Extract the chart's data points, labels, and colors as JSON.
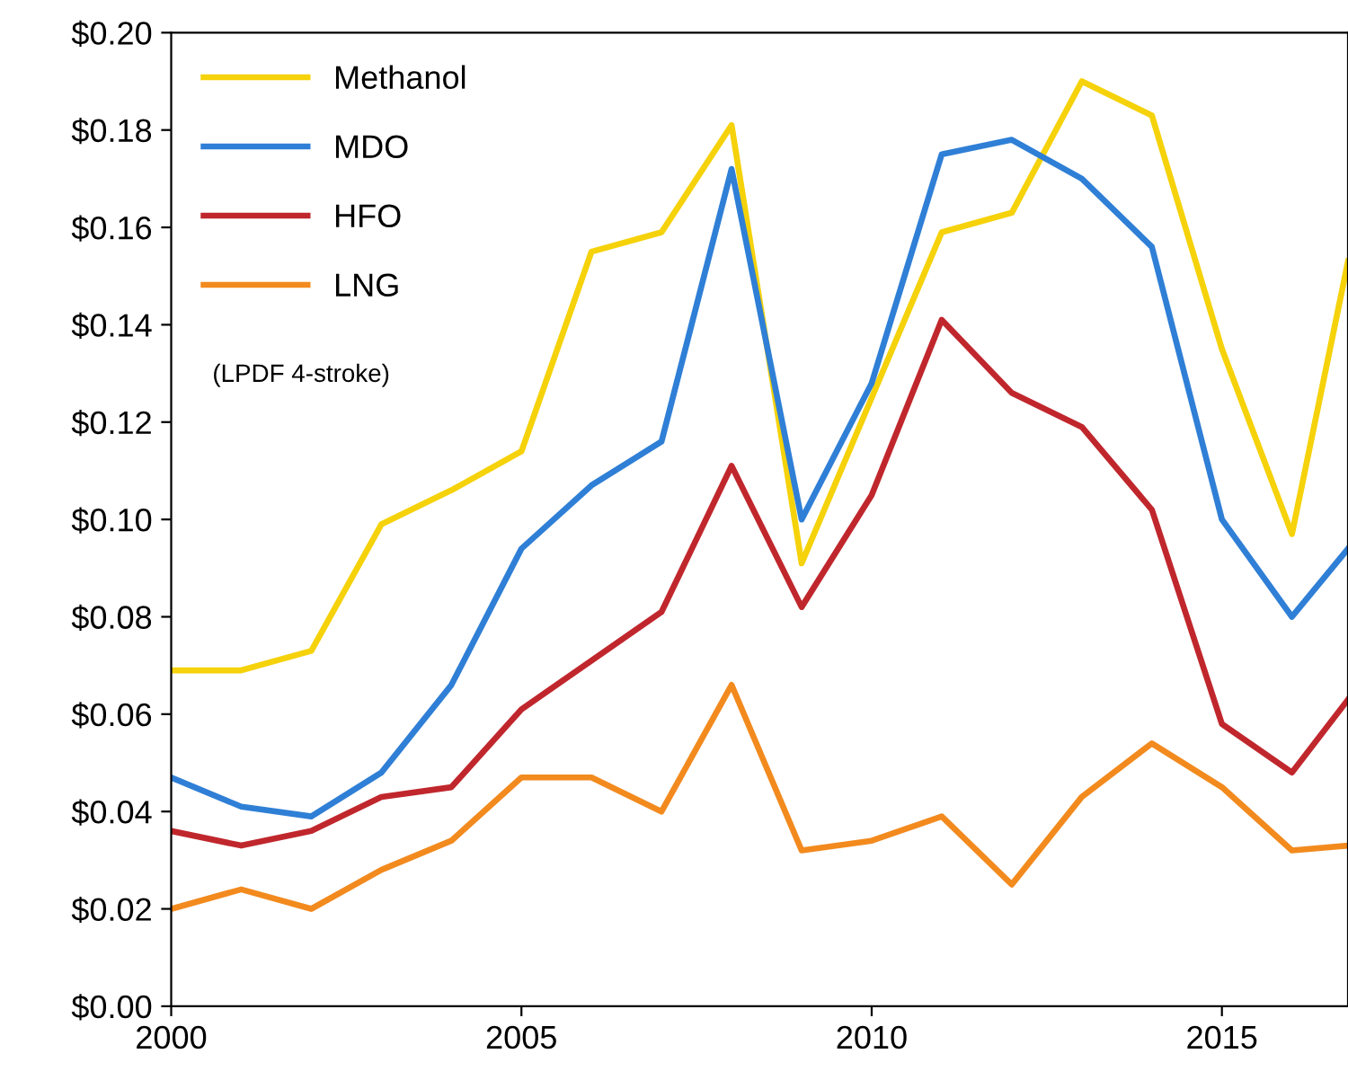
{
  "chart_data": {
    "type": "line",
    "xlim": [
      2000,
      2016.8
    ],
    "xticks": [
      2000,
      2005,
      2010,
      2015
    ],
    "ylim": [
      0,
      0.2
    ],
    "yticks": [
      {
        "value": 0,
        "label": "$0.00"
      },
      {
        "value": 0.02,
        "label": "$0.02"
      },
      {
        "value": 0.04,
        "label": "$0.04"
      },
      {
        "value": 0.06,
        "label": "$0.06"
      },
      {
        "value": 0.08,
        "label": "$0.08"
      },
      {
        "value": 0.1,
        "label": "$0.10"
      },
      {
        "value": 0.12,
        "label": "$0.12"
      },
      {
        "value": 0.14,
        "label": "$0.14"
      },
      {
        "value": 0.16,
        "label": "$0.16"
      },
      {
        "value": 0.18,
        "label": "$0.18"
      },
      {
        "value": 0.2,
        "label": "$0.20"
      }
    ],
    "x": [
      2000,
      2001,
      2002,
      2003,
      2004,
      2005,
      2006,
      2007,
      2008,
      2009,
      2010,
      2011,
      2012,
      2013,
      2014,
      2015,
      2016,
      2016.8
    ],
    "series": [
      {
        "name": "Methanol",
        "color": "#f5d20a",
        "values": [
          0.069,
          0.069,
          0.073,
          0.099,
          0.106,
          0.114,
          0.155,
          0.159,
          0.181,
          0.091,
          0.125,
          0.159,
          0.163,
          0.19,
          0.183,
          0.135,
          0.097,
          0.153
        ]
      },
      {
        "name": "MDO",
        "color": "#2f7fd6",
        "values": [
          0.047,
          0.041,
          0.039,
          0.048,
          0.066,
          0.094,
          0.107,
          0.116,
          0.172,
          0.1,
          0.128,
          0.175,
          0.178,
          0.17,
          0.156,
          0.1,
          0.08,
          0.094
        ]
      },
      {
        "name": "HFO",
        "color": "#c0272d",
        "values": [
          0.036,
          0.033,
          0.036,
          0.043,
          0.045,
          0.061,
          0.071,
          0.081,
          0.111,
          0.082,
          0.105,
          0.141,
          0.126,
          0.119,
          0.102,
          0.058,
          0.048,
          0.063
        ]
      },
      {
        "name": "LNG",
        "color": "#f28a1e",
        "values": [
          0.02,
          0.024,
          0.02,
          0.028,
          0.034,
          0.047,
          0.047,
          0.04,
          0.066,
          0.032,
          0.034,
          0.039,
          0.025,
          0.043,
          0.054,
          0.045,
          0.032,
          0.033
        ]
      }
    ],
    "annotations": [
      "(LPDF 4-stroke)"
    ],
    "legend": "top left",
    "grid": false,
    "marker": "none",
    "line_style": "solid"
  }
}
